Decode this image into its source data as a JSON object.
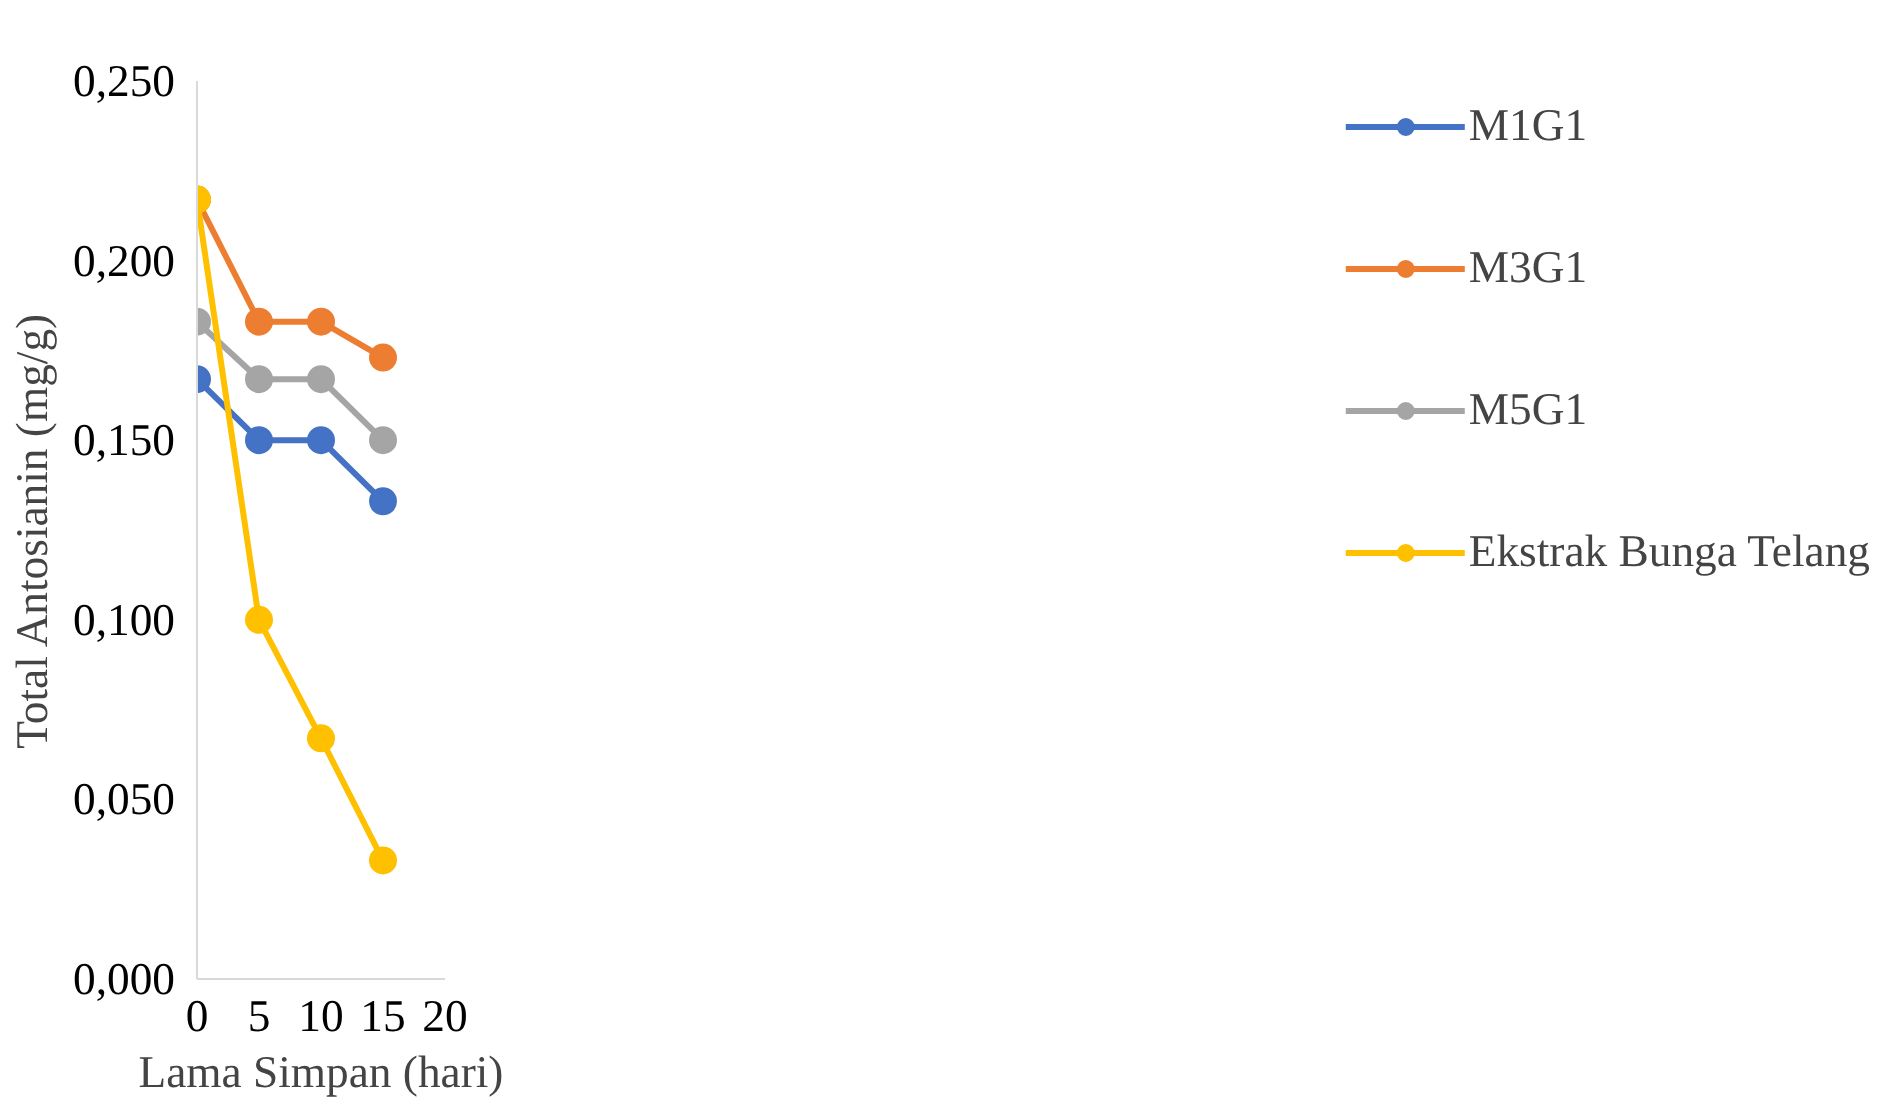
{
  "chart_data": {
    "type": "line",
    "xlabel": "Lama Simpan (hari)",
    "ylabel": "Total Antosianin (mg/g)",
    "x": [
      0,
      5,
      10,
      15
    ],
    "series": [
      {
        "name": "M1G1",
        "color": "#4472c4",
        "values": [
          0.167,
          0.15,
          0.15,
          0.133
        ]
      },
      {
        "name": "M3G1",
        "color": "#ed7d31",
        "values": [
          0.217,
          0.183,
          0.183,
          0.173
        ]
      },
      {
        "name": "M5G1",
        "color": "#a5a5a5",
        "values": [
          0.183,
          0.167,
          0.167,
          0.15
        ]
      },
      {
        "name": "Ekstrak Bunga Telang",
        "color": "#ffc000",
        "values": [
          0.217,
          0.1,
          0.067,
          0.033
        ]
      }
    ],
    "xlim": [
      0,
      20
    ],
    "xticks": [
      0,
      5,
      10,
      15,
      20
    ],
    "ylim": [
      0,
      0.25
    ],
    "yticks": [
      {
        "value": 0,
        "label": "0,000"
      },
      {
        "value": 0.05,
        "label": "0,050"
      },
      {
        "value": 0.1,
        "label": "0,100"
      },
      {
        "value": 0.15,
        "label": "0,150"
      },
      {
        "value": 0.2,
        "label": "0,200"
      },
      {
        "value": 0.25,
        "label": "0,250"
      }
    ],
    "grid": false,
    "legend": "right",
    "marker": "circle",
    "line_style": "solid"
  }
}
